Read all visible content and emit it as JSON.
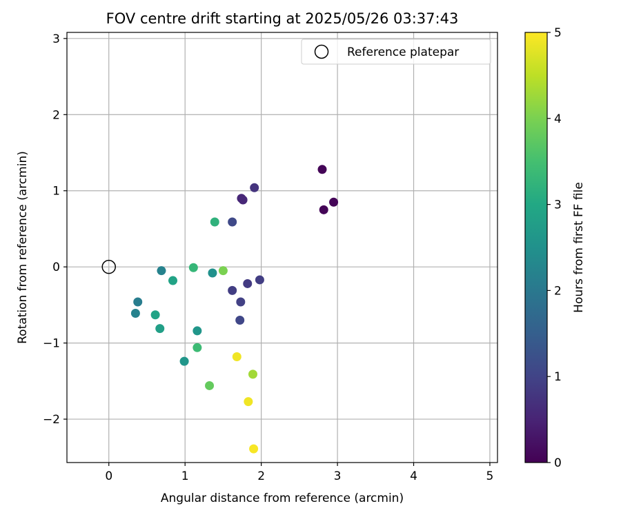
{
  "chart_data": {
    "type": "scatter",
    "title": "FOV centre drift starting at 2025/05/26 03:37:43",
    "xlabel": "Angular distance from reference (arcmin)",
    "ylabel": "Rotation from reference (arcmin)",
    "xlim": [
      -0.55,
      5.1
    ],
    "ylim": [
      -2.57,
      3.08
    ],
    "xticks": [
      "0",
      "1",
      "2",
      "3",
      "4",
      "5"
    ],
    "yticks": [
      "−2",
      "−1",
      "0",
      "1",
      "2",
      "3"
    ],
    "grid": true,
    "legend": {
      "position": "top-right",
      "label": "Reference platepar"
    },
    "reference_point": {
      "x": 0,
      "y": 0
    },
    "colorbar": {
      "label": "Hours from first FF file",
      "min": 0,
      "max": 5,
      "ticks": [
        "0",
        "1",
        "2",
        "3",
        "4",
        "5"
      ],
      "colormap": "viridis"
    },
    "points": [
      {
        "x": 2.8,
        "y": 1.28,
        "c": 0.05
      },
      {
        "x": 2.95,
        "y": 0.85,
        "c": 0.05
      },
      {
        "x": 2.82,
        "y": 0.75,
        "c": 0.05
      },
      {
        "x": 1.74,
        "y": 0.9,
        "c": 0.55
      },
      {
        "x": 1.76,
        "y": 0.88,
        "c": 0.55
      },
      {
        "x": 1.91,
        "y": 1.04,
        "c": 0.75
      },
      {
        "x": 1.62,
        "y": 0.59,
        "c": 1.1
      },
      {
        "x": 1.98,
        "y": -0.17,
        "c": 0.9
      },
      {
        "x": 1.82,
        "y": -0.22,
        "c": 0.85
      },
      {
        "x": 1.62,
        "y": -0.31,
        "c": 0.9
      },
      {
        "x": 1.73,
        "y": -0.46,
        "c": 0.95
      },
      {
        "x": 1.72,
        "y": -0.7,
        "c": 1.05
      },
      {
        "x": 1.39,
        "y": 0.59,
        "c": 3.2
      },
      {
        "x": 1.36,
        "y": -0.08,
        "c": 2.5
      },
      {
        "x": 1.11,
        "y": -0.01,
        "c": 3.3
      },
      {
        "x": 1.5,
        "y": -0.05,
        "c": 4.0
      },
      {
        "x": 0.69,
        "y": -0.05,
        "c": 2.2
      },
      {
        "x": 0.84,
        "y": -0.18,
        "c": 2.9
      },
      {
        "x": 0.38,
        "y": -0.46,
        "c": 2.1
      },
      {
        "x": 0.35,
        "y": -0.61,
        "c": 2.2
      },
      {
        "x": 0.61,
        "y": -0.63,
        "c": 2.9
      },
      {
        "x": 0.67,
        "y": -0.81,
        "c": 2.8
      },
      {
        "x": 1.16,
        "y": -0.84,
        "c": 2.6
      },
      {
        "x": 1.16,
        "y": -1.06,
        "c": 3.4
      },
      {
        "x": 0.99,
        "y": -1.24,
        "c": 2.6
      },
      {
        "x": 1.32,
        "y": -1.56,
        "c": 3.8
      },
      {
        "x": 1.68,
        "y": -1.18,
        "c": 4.9
      },
      {
        "x": 1.89,
        "y": -1.41,
        "c": 4.3
      },
      {
        "x": 1.83,
        "y": -1.77,
        "c": 4.9
      },
      {
        "x": 1.9,
        "y": -2.39,
        "c": 4.95
      }
    ]
  }
}
